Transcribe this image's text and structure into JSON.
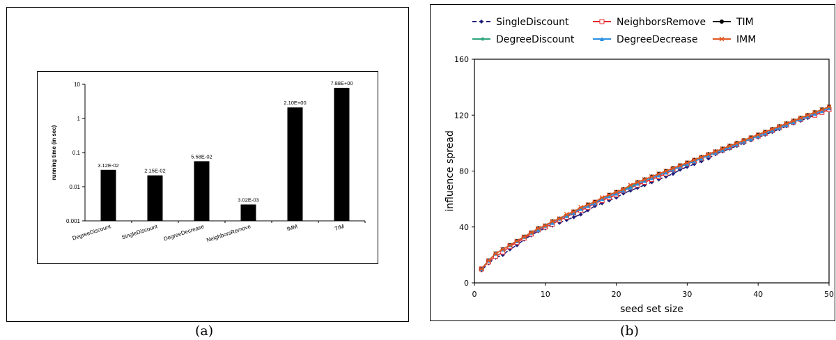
{
  "captions": {
    "a": "(a)",
    "b": "(b)"
  },
  "chart_data": [
    {
      "type": "bar",
      "ylabel": "running time (in sec)",
      "yscale": "log",
      "ylim": [
        0.001,
        10
      ],
      "yticks": [
        "0.001",
        "0.01",
        "0.1",
        "1",
        "10"
      ],
      "categories": [
        "DegreeDiscount",
        "SingleDiscount",
        "DegreeDecrease",
        "NeighborsRemove",
        "IMM",
        "TIM"
      ],
      "values": [
        0.0312,
        0.0215,
        0.0558,
        0.00302,
        2.1,
        7.88
      ],
      "data_labels": [
        "3.12E-02",
        "2.15E-02",
        "5.58E-02",
        "3.02E-03",
        "2.10E+00",
        "7.88E+00"
      ],
      "bar_color": "#000000"
    },
    {
      "type": "line",
      "xlabel": "seed set size",
      "ylabel": "influence spread",
      "xlim": [
        0,
        50
      ],
      "ylim": [
        0,
        160
      ],
      "xticks": [
        0,
        10,
        20,
        30,
        40,
        50
      ],
      "yticks": [
        0,
        40,
        80,
        120,
        160
      ],
      "legend_position": "top",
      "x": [
        1,
        2,
        3,
        4,
        5,
        6,
        7,
        8,
        9,
        10,
        11,
        12,
        13,
        14,
        15,
        16,
        17,
        18,
        19,
        20,
        21,
        22,
        23,
        24,
        25,
        26,
        27,
        28,
        29,
        30,
        31,
        32,
        33,
        34,
        35,
        36,
        37,
        38,
        39,
        40,
        41,
        42,
        43,
        44,
        45,
        46,
        47,
        48,
        49,
        50
      ],
      "series": [
        {
          "name": "SingleDiscount",
          "color": "#1f1f7a",
          "marker": "diamond",
          "dash": "8,5",
          "values": [
            9,
            14,
            18,
            20,
            24,
            27,
            31,
            34,
            37,
            39,
            41,
            43,
            45,
            47,
            49,
            52,
            55,
            57,
            59,
            61,
            64,
            66,
            68,
            70,
            72,
            74,
            76,
            78,
            81,
            83,
            85,
            87,
            89,
            92,
            94,
            96,
            98,
            100,
            102,
            104,
            106,
            108,
            110,
            112,
            114,
            116,
            118,
            120,
            122,
            124
          ]
        },
        {
          "name": "NeighborsRemove",
          "color": "#e8292e",
          "marker": "square-open",
          "dash": "",
          "values": [
            10,
            15,
            19,
            22,
            26,
            29,
            32,
            35,
            38,
            40,
            42,
            45,
            47,
            50,
            52,
            54,
            57,
            59,
            61,
            63,
            66,
            68,
            70,
            72,
            74,
            76,
            78,
            81,
            83,
            85,
            87,
            89,
            91,
            93,
            95,
            97,
            99,
            101,
            103,
            105,
            107,
            109,
            111,
            113,
            115,
            117,
            119,
            120,
            122,
            124
          ]
        },
        {
          "name": "TIM",
          "color": "#000000",
          "marker": "circle",
          "dash": "",
          "values": [
            10,
            16,
            21,
            24,
            27,
            30,
            33,
            36,
            39,
            41,
            44,
            46,
            48,
            51,
            53,
            56,
            58,
            60,
            63,
            65,
            67,
            69,
            72,
            74,
            76,
            78,
            80,
            82,
            84,
            86,
            88,
            90,
            92,
            94,
            96,
            98,
            100,
            102,
            104,
            106,
            108,
            110,
            112,
            114,
            116,
            118,
            120,
            122,
            124,
            126
          ]
        },
        {
          "name": "DegreeDiscount",
          "color": "#2ca57a",
          "marker": "tri-left",
          "dash": "",
          "values": [
            10,
            16,
            21,
            24,
            27,
            30,
            33,
            36,
            39,
            41,
            44,
            46,
            48,
            51,
            53,
            56,
            58,
            60,
            63,
            65,
            67,
            69,
            72,
            74,
            76,
            78,
            80,
            82,
            84,
            86,
            88,
            90,
            92,
            94,
            96,
            98,
            100,
            102,
            104,
            106,
            108,
            110,
            112,
            114,
            116,
            118,
            120,
            122,
            124,
            126
          ]
        },
        {
          "name": "DegreeDecrease",
          "color": "#2a8fe0",
          "marker": "triangle",
          "dash": "",
          "values": [
            10,
            16,
            21,
            24,
            27,
            30,
            33,
            36,
            38,
            41,
            43,
            46,
            48,
            50,
            53,
            55,
            57,
            60,
            62,
            64,
            66,
            68,
            71,
            73,
            75,
            77,
            79,
            81,
            83,
            85,
            87,
            89,
            91,
            93,
            95,
            97,
            99,
            101,
            103,
            105,
            107,
            109,
            111,
            113,
            115,
            117,
            119,
            121,
            123,
            125
          ]
        },
        {
          "name": "IMM",
          "color": "#e0551e",
          "marker": "asterisk",
          "dash": "",
          "values": [
            10,
            16,
            21,
            24,
            27,
            30,
            33,
            36,
            39,
            41,
            44,
            46,
            49,
            51,
            54,
            56,
            58,
            61,
            63,
            65,
            67,
            70,
            72,
            74,
            76,
            78,
            80,
            82,
            84,
            86,
            88,
            90,
            92,
            94,
            96,
            98,
            100,
            102,
            104,
            106,
            108,
            110,
            112,
            114,
            116,
            118,
            120,
            122,
            124,
            126
          ]
        }
      ]
    }
  ]
}
